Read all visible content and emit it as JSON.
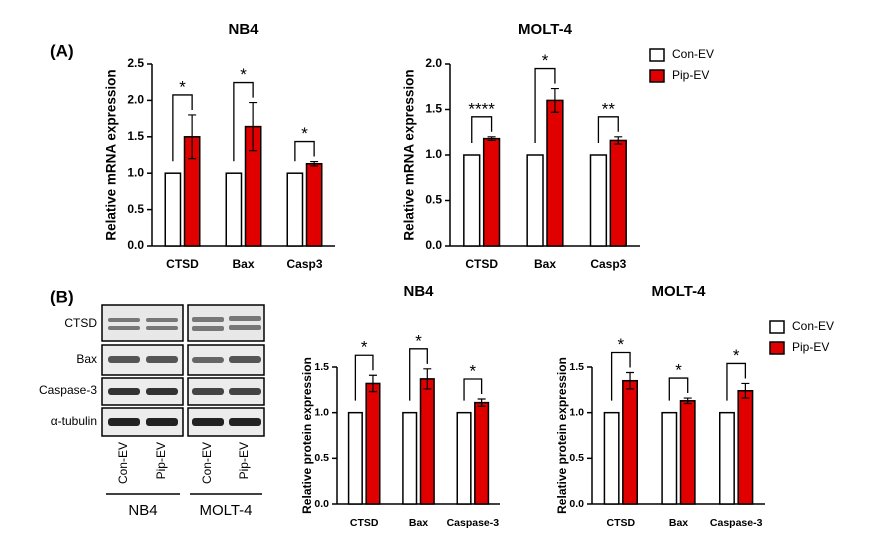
{
  "panels": [
    "(A)",
    "(B)"
  ],
  "blot": {
    "rows": [
      "CTSD",
      "Bax",
      "Caspase-3",
      "α-tubulin"
    ],
    "lanes": [
      "Con-EV",
      "Pip-EV",
      "Con-EV",
      "Pip-EV"
    ],
    "groups": [
      "NB4",
      "MOLT-4"
    ]
  },
  "chart_data": [
    {
      "type": "bar",
      "title": "NB4",
      "ylabel": "Relative mRNA expression",
      "categories": [
        "CTSD",
        "Bax",
        "Casp3"
      ],
      "series": [
        {
          "color": "#ffffff",
          "values": [
            1,
            1,
            1
          ]
        },
        {
          "color": "#e00000",
          "values": [
            1.5,
            1.64,
            1.13
          ],
          "errors": [
            0.3,
            0.33,
            0.03
          ]
        }
      ],
      "significance": [
        "*",
        "*",
        "*"
      ],
      "ylim": [
        0,
        2.5
      ],
      "yticks": [
        {
          "value": 0,
          "label": "0.0"
        },
        {
          "value": 0.5,
          "label": "0.5"
        },
        {
          "value": 1,
          "label": "1.0"
        },
        {
          "value": 1.5,
          "label": "1.5"
        },
        {
          "value": 2,
          "label": "2.0"
        },
        {
          "value": 2.5,
          "label": "2.5"
        }
      ]
    },
    {
      "type": "bar",
      "title": "MOLT-4",
      "ylabel": "Relative mRNA expression",
      "categories": [
        "CTSD",
        "Bax",
        "Casp3"
      ],
      "series": [
        {
          "name": "Con-EV",
          "color": "#ffffff",
          "values": [
            1,
            1,
            1
          ]
        },
        {
          "name": "Pip-EV",
          "color": "#e00000",
          "values": [
            1.18,
            1.6,
            1.16
          ],
          "errors": [
            0.02,
            0.13,
            0.04
          ]
        }
      ],
      "significance": [
        "****",
        "*",
        "**"
      ],
      "ylim": [
        0,
        2
      ],
      "yticks": [
        {
          "value": 0,
          "label": "0.0"
        },
        {
          "value": 0.5,
          "label": "0.5"
        },
        {
          "value": 1,
          "label": "1.0"
        },
        {
          "value": 1.5,
          "label": "1.5"
        },
        {
          "value": 2,
          "label": "2.0"
        }
      ],
      "legend": "right"
    },
    {
      "type": "bar",
      "title": "NB4",
      "ylabel": "Relative protein expression",
      "categories": [
        "CTSD",
        "Bax",
        "Caspase-3"
      ],
      "series": [
        {
          "color": "#ffffff",
          "values": [
            1,
            1,
            1
          ]
        },
        {
          "color": "#e00000",
          "values": [
            1.32,
            1.37,
            1.11
          ],
          "errors": [
            0.09,
            0.11,
            0.04
          ]
        }
      ],
      "significance": [
        "*",
        "*",
        "*"
      ],
      "ylim": [
        0,
        1.5
      ],
      "yticks": [
        {
          "value": 0,
          "label": "0.0"
        },
        {
          "value": 0.5,
          "label": "0.5"
        },
        {
          "value": 1,
          "label": "1.0"
        },
        {
          "value": 1.5,
          "label": "1.5"
        }
      ]
    },
    {
      "type": "bar",
      "title": "MOLT-4",
      "ylabel": "Relative protein expression",
      "categories": [
        "CTSD",
        "Bax",
        "Caspase-3"
      ],
      "series": [
        {
          "name": "Con-EV",
          "color": "#ffffff",
          "values": [
            1,
            1,
            1
          ]
        },
        {
          "name": "Pip-EV",
          "color": "#e00000",
          "values": [
            1.35,
            1.13,
            1.24
          ],
          "errors": [
            0.09,
            0.03,
            0.08
          ]
        }
      ],
      "significance": [
        "*",
        "*",
        "*"
      ],
      "ylim": [
        0,
        1.5
      ],
      "yticks": [
        {
          "value": 0,
          "label": "0.0"
        },
        {
          "value": 0.5,
          "label": "0.5"
        },
        {
          "value": 1,
          "label": "1.0"
        },
        {
          "value": 1.5,
          "label": "1.5"
        }
      ],
      "legend": "right"
    }
  ]
}
